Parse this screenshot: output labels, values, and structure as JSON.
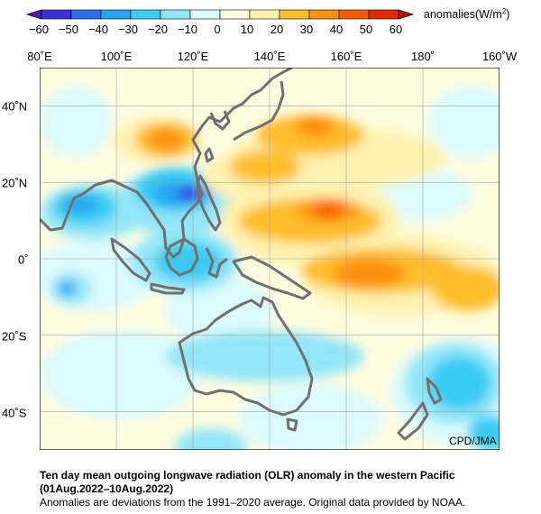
{
  "colorbar": {
    "ticks": [
      "−60",
      "−50",
      "−40",
      "−30",
      "−20",
      "−10",
      "0",
      "10",
      "20",
      "30",
      "40",
      "50",
      "60"
    ],
    "colors": [
      "#3a2fd8",
      "#2a6ff0",
      "#27a4f2",
      "#39ccf4",
      "#93e6f8",
      "#dcfbfd",
      "#fffde0",
      "#fff2b0",
      "#ffbe2a",
      "#ff9010",
      "#f85a00",
      "#e62a00"
    ],
    "unit_text": "anomalies(W/m",
    "unit_sup": "2",
    "unit_close": ")"
  },
  "map": {
    "lon_labels": [
      "80˚E",
      "100˚E",
      "120˚E",
      "140˚E",
      "160˚E",
      "180˚",
      "160˚W"
    ],
    "lat_labels": [
      "40˚N",
      "20˚N",
      "0˚",
      "20˚S",
      "40˚S"
    ],
    "extent": {
      "lon": [
        80,
        200
      ],
      "lat": [
        -50,
        50
      ]
    },
    "grid": true,
    "coastline_color": "#707070"
  },
  "credit": "CPD/JMA",
  "caption": {
    "line1": "Ten day mean outgoing longwave radiation (OLR) anomaly in the western Pacific",
    "line2": "(01Aug.2022–10Aug.2022)",
    "line3": "Anomalies are deviations from the 1991–2020 average. Original data provided by NOAA."
  }
}
